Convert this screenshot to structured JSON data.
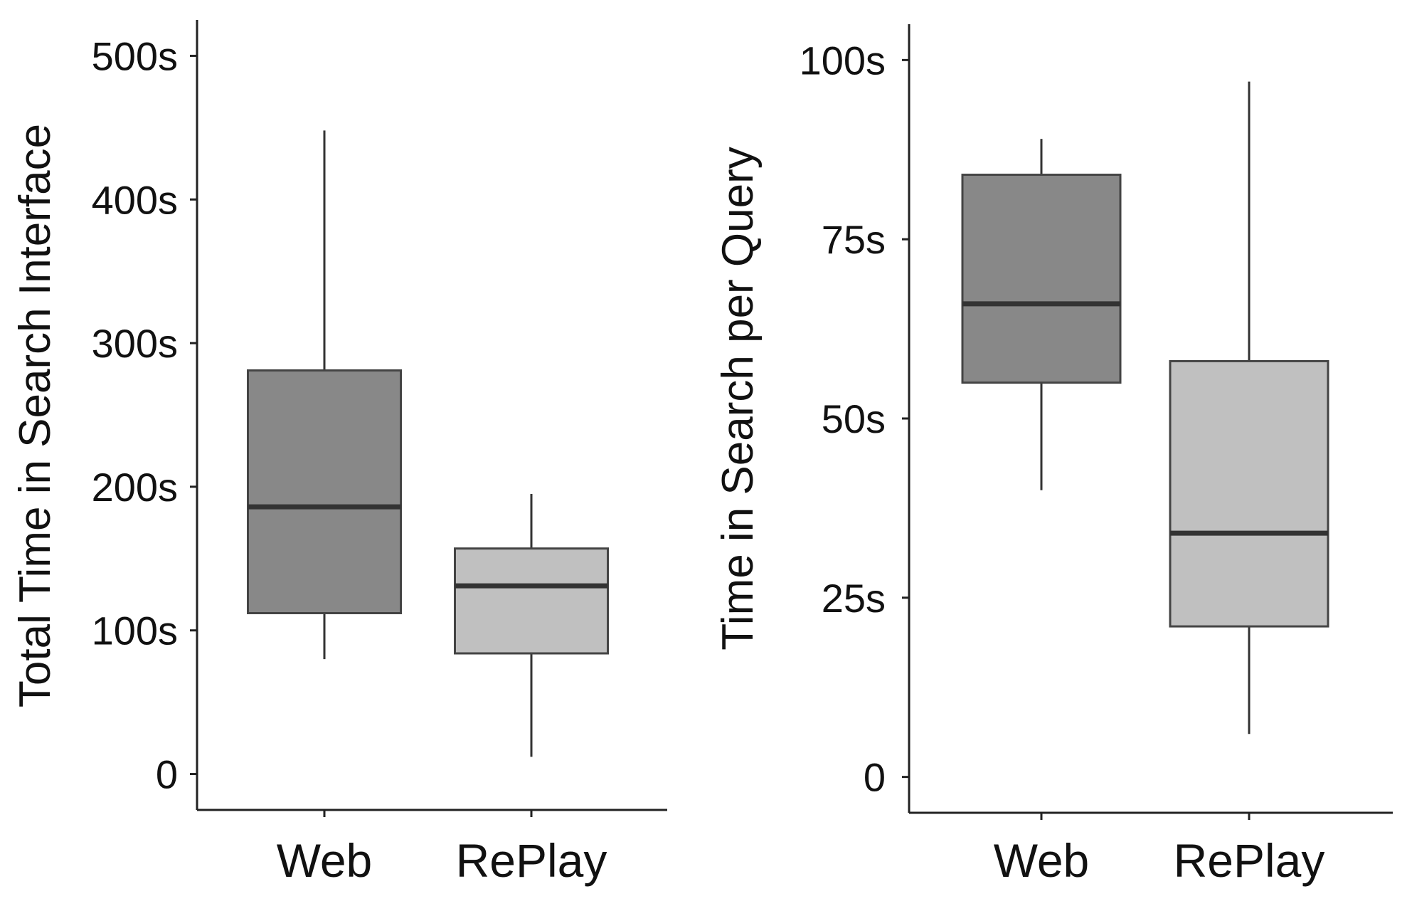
{
  "chart_data": [
    {
      "type": "box",
      "title": "",
      "xlabel": "",
      "ylabel": "Total Time in Search Interface",
      "categories": [
        "Web",
        "RePlay"
      ],
      "yticks": [
        {
          "value": 0,
          "label": "0"
        },
        {
          "value": 100,
          "label": "100s"
        },
        {
          "value": 200,
          "label": "200s"
        },
        {
          "value": 300,
          "label": "300s"
        },
        {
          "value": 400,
          "label": "400s"
        },
        {
          "value": 500,
          "label": "500s"
        }
      ],
      "ylim": [
        -25,
        525
      ],
      "grid": false,
      "boxes": [
        {
          "category": "Web",
          "min": 80,
          "q1": 112,
          "median": 186,
          "q3": 281,
          "max": 448,
          "color": "#888888"
        },
        {
          "category": "RePlay",
          "min": 12,
          "q1": 84,
          "median": 131,
          "q3": 157,
          "max": 195,
          "color": "#c0c0c0"
        }
      ]
    },
    {
      "type": "box",
      "title": "",
      "xlabel": "",
      "ylabel": "Time in Search per Query",
      "categories": [
        "Web",
        "RePlay"
      ],
      "yticks": [
        {
          "value": 0,
          "label": "0"
        },
        {
          "value": 25,
          "label": "25s"
        },
        {
          "value": 50,
          "label": "50s"
        },
        {
          "value": 75,
          "label": "75s"
        },
        {
          "value": 100,
          "label": "100s"
        }
      ],
      "ylim": [
        -5,
        105
      ],
      "grid": false,
      "boxes": [
        {
          "category": "Web",
          "min": 40,
          "q1": 55,
          "median": 66,
          "q3": 84,
          "max": 89,
          "color": "#888888"
        },
        {
          "category": "RePlay",
          "min": 6,
          "q1": 21,
          "median": 34,
          "q3": 58,
          "max": 97,
          "color": "#c0c0c0"
        }
      ]
    }
  ]
}
